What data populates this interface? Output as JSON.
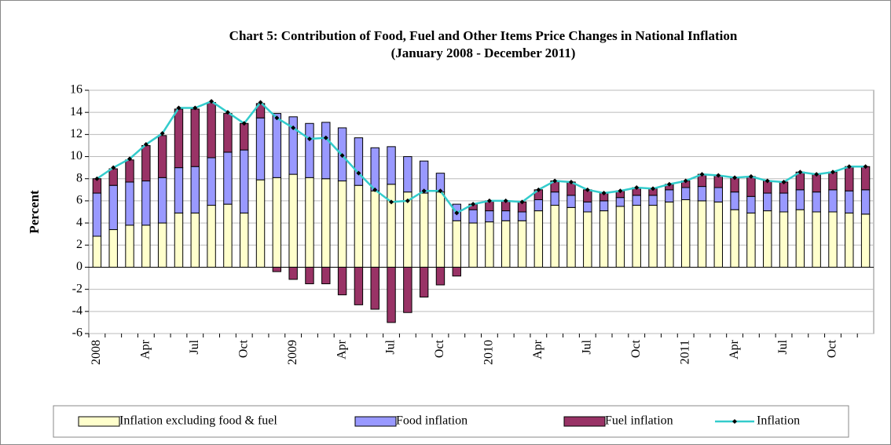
{
  "chart_data": {
    "type": "bar",
    "stacked": true,
    "title": "Chart 5: Contribution of Food, Fuel and Other Items Price Changes in National Inflation",
    "subtitle": "(January 2008 - December 2011)",
    "y_label": "Percent",
    "categories": [
      "2008",
      null,
      null,
      "Apr",
      null,
      null,
      "Jul",
      null,
      null,
      "Oct",
      null,
      null,
      "2009",
      null,
      null,
      "Apr",
      null,
      null,
      "Jul",
      null,
      null,
      "Oct",
      null,
      null,
      "2010",
      null,
      null,
      "Apr",
      null,
      null,
      "Jul",
      null,
      null,
      "Oct",
      null,
      null,
      "2011",
      null,
      null,
      "Apr",
      null,
      null,
      "Jul",
      null,
      null,
      "Oct",
      null,
      null
    ],
    "ylim": [
      -6,
      16
    ],
    "yticks": [
      -6,
      -4,
      -2,
      0,
      2,
      4,
      6,
      8,
      10,
      12,
      14,
      16
    ],
    "grid": true,
    "legend": "bottom",
    "series": [
      {
        "name": "Inflation excluding food & fuel",
        "type": "bar",
        "color": "#ffffcc",
        "values": [
          2.8,
          3.4,
          3.8,
          3.8,
          4.0,
          4.9,
          4.9,
          5.6,
          5.7,
          4.9,
          7.9,
          8.1,
          8.4,
          8.1,
          8.0,
          7.8,
          7.4,
          6.9,
          7.5,
          6.8,
          6.7,
          6.8,
          4.2,
          4.0,
          4.1,
          4.2,
          4.2,
          5.1,
          5.6,
          5.4,
          5.0,
          5.1,
          5.5,
          5.6,
          5.6,
          5.9,
          6.1,
          6.0,
          5.9,
          5.2,
          4.9,
          5.1,
          5.0,
          5.2,
          5.0,
          5.0,
          4.9,
          4.8
        ]
      },
      {
        "name": "Food inflation",
        "type": "bar",
        "color": "#9999ff",
        "values": [
          3.9,
          4.0,
          3.9,
          4.0,
          4.1,
          4.1,
          4.2,
          4.3,
          4.7,
          5.7,
          5.6,
          5.8,
          5.2,
          4.9,
          5.1,
          4.8,
          4.3,
          3.9,
          3.4,
          3.2,
          2.9,
          1.7,
          1.5,
          1.2,
          1.0,
          0.9,
          0.8,
          1.0,
          1.2,
          1.1,
          0.9,
          0.9,
          0.8,
          0.9,
          0.9,
          1.1,
          1.1,
          1.3,
          1.3,
          1.6,
          1.5,
          1.6,
          1.7,
          1.8,
          1.8,
          2.0,
          2.0,
          2.2
        ]
      },
      {
        "name": "Fuel inflation",
        "type": "bar",
        "color": "#993366",
        "values": [
          1.3,
          1.5,
          2.0,
          3.2,
          3.8,
          5.3,
          5.2,
          5.0,
          3.5,
          2.4,
          1.3,
          -0.4,
          -1.1,
          -1.5,
          -1.5,
          -2.5,
          -3.4,
          -3.8,
          -5.0,
          -4.1,
          -2.7,
          -1.6,
          -0.8,
          0.5,
          0.9,
          0.9,
          0.9,
          0.9,
          1.0,
          1.2,
          1.1,
          0.7,
          0.6,
          0.7,
          0.6,
          0.5,
          0.6,
          1.1,
          1.1,
          1.3,
          1.8,
          1.1,
          1.0,
          1.6,
          1.6,
          1.6,
          2.2,
          2.1
        ]
      },
      {
        "name": "Inflation",
        "type": "line",
        "color": "#33cccc",
        "marker_color": "#000000",
        "values": [
          8.0,
          9.0,
          9.8,
          11.1,
          12.1,
          14.4,
          14.4,
          15.0,
          14.0,
          13.0,
          14.9,
          13.5,
          12.6,
          11.6,
          11.7,
          10.1,
          8.5,
          7.0,
          5.9,
          6.0,
          6.9,
          6.9,
          4.9,
          5.7,
          6.0,
          6.0,
          5.9,
          7.0,
          7.8,
          7.7,
          7.0,
          6.7,
          6.9,
          7.2,
          7.1,
          7.5,
          7.8,
          8.4,
          8.3,
          8.1,
          8.2,
          7.8,
          7.7,
          8.6,
          8.4,
          8.6,
          9.1,
          9.1
        ]
      }
    ]
  }
}
